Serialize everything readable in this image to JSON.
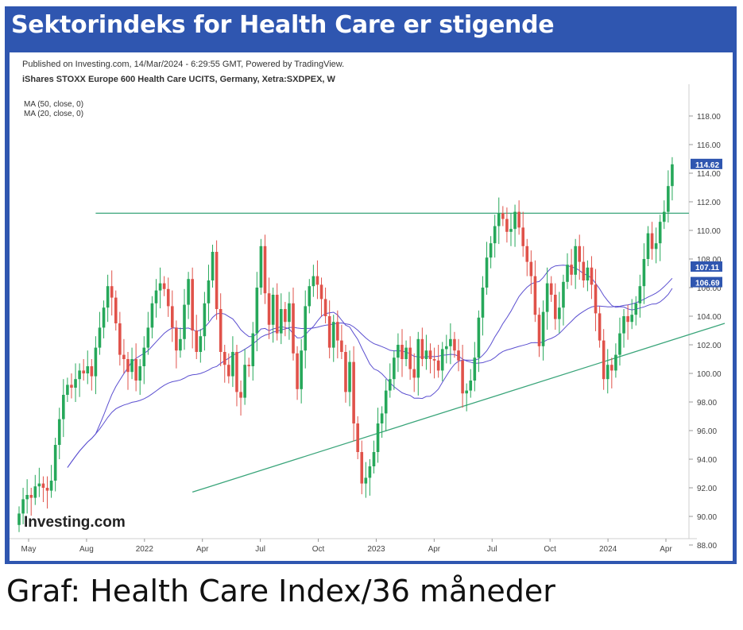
{
  "header": {
    "title": "Sektorindeks for Health Care er stigende"
  },
  "chart_meta": {
    "published": "Published on Investing.com, 14/Mar/2024 - 6:29:55 GMT, Powered by TradingView.",
    "instrument": "iShares STOXX Europe 600 Health Care UCITS, Germany, Xetra:SXDPEX, W",
    "ma1": "MA (50, close, 0)",
    "ma2": "MA (20, close, 0)",
    "logo": "Investing.com"
  },
  "caption": "Graf: Health Care Index/36 måneder",
  "colors": {
    "frame": "#2f56b0",
    "up": "#26a85a",
    "down": "#e0524a",
    "ma": "#5b4fd0",
    "line": "#3aa57a"
  },
  "chart_data": {
    "type": "candlestick",
    "title": "",
    "xlabel": "",
    "ylabel": "",
    "ylim": [
      88,
      120
    ],
    "yticks": [
      "88.00",
      "90.00",
      "92.00",
      "94.00",
      "96.00",
      "98.00",
      "100.00",
      "102.00",
      "104.00",
      "106.00",
      "108.00",
      "110.00",
      "112.00",
      "114.00",
      "116.00",
      "118.00"
    ],
    "xticks": [
      "May",
      "Aug",
      "2022",
      "Apr",
      "Jul",
      "Oct",
      "2023",
      "Apr",
      "Jul",
      "Oct",
      "2024",
      "Apr"
    ],
    "price_labels": [
      {
        "text": "114.62",
        "value": 114.62,
        "color": "#2f56b0"
      },
      {
        "text": "107.11",
        "value": 107.11,
        "color": "#2f56b0"
      },
      {
        "text": "106.69",
        "value": 106.69,
        "color": "#2f56b0"
      }
    ],
    "horizontal_level": 111.2,
    "trendline": {
      "from": [
        43,
        91.7
      ],
      "to": [
        94,
        103.5
      ]
    },
    "series": [
      {
        "name": "iShares STOXX Europe 600 Health Care UCITS",
        "ohlc_close": [
          90.2,
          91.2,
          91.5,
          91.3,
          92.1,
          92.3,
          92.0,
          91.8,
          92.5,
          95.0,
          96.8,
          98.5,
          99.2,
          99.0,
          99.6,
          100.2,
          100.0,
          100.5,
          99.8,
          101.8,
          103.2,
          104.6,
          106.1,
          105.3,
          103.5,
          101.3,
          101.0,
          100.1,
          101.0,
          99.5,
          100.5,
          101.8,
          103.2,
          104.9,
          105.8,
          106.3,
          105.9,
          104.7,
          103.2,
          101.6,
          102.4,
          104.8,
          106.6,
          103.0,
          101.5,
          102.6,
          104.9,
          106.5,
          108.5,
          104.5,
          101.5,
          100.6,
          99.8,
          101.5,
          98.7,
          98.3,
          100.6,
          100.5,
          102.8,
          106.0,
          108.9,
          105.6,
          103.4,
          105.5,
          102.8,
          104.5,
          103.6,
          104.9,
          101.4,
          98.9,
          101.6,
          104.7,
          106.1,
          106.8,
          106.2,
          105.2,
          104.0,
          101.8,
          103.6,
          102.3,
          101.5,
          98.7,
          100.8,
          96.5,
          94.5,
          92.3,
          92.7,
          93.5,
          94.5,
          96.5,
          97.2,
          98.8,
          99.6,
          101.1,
          102.0,
          101.0,
          101.8,
          100.3,
          99.7,
          102.4,
          101.0,
          101.6,
          101.0,
          100.9,
          100.2,
          101.7,
          101.9,
          102.4,
          101.6,
          100.9,
          98.6,
          98.8,
          99.5,
          101.1,
          103.9,
          106.0,
          108.1,
          109.1,
          110.3,
          111.2,
          110.8,
          109.9,
          110.1,
          111.3,
          110.2,
          108.9,
          107.8,
          106.8,
          104.1,
          101.9,
          104.3,
          106.3,
          105.5,
          103.8,
          104.6,
          106.4,
          107.6,
          106.9,
          108.9,
          107.8,
          106.5,
          107.4,
          106.2,
          104.2,
          102.3,
          99.6,
          100.6,
          100.2,
          101.3,
          102.8,
          104.0,
          103.6,
          104.1,
          104.9,
          106.1,
          108.0,
          109.8,
          108.7,
          109.1,
          110.6,
          111.3,
          113.1,
          114.62
        ]
      }
    ],
    "moving_averages": [
      {
        "name": "MA (50, close, 0)"
      },
      {
        "name": "MA (20, close, 0)"
      }
    ]
  }
}
